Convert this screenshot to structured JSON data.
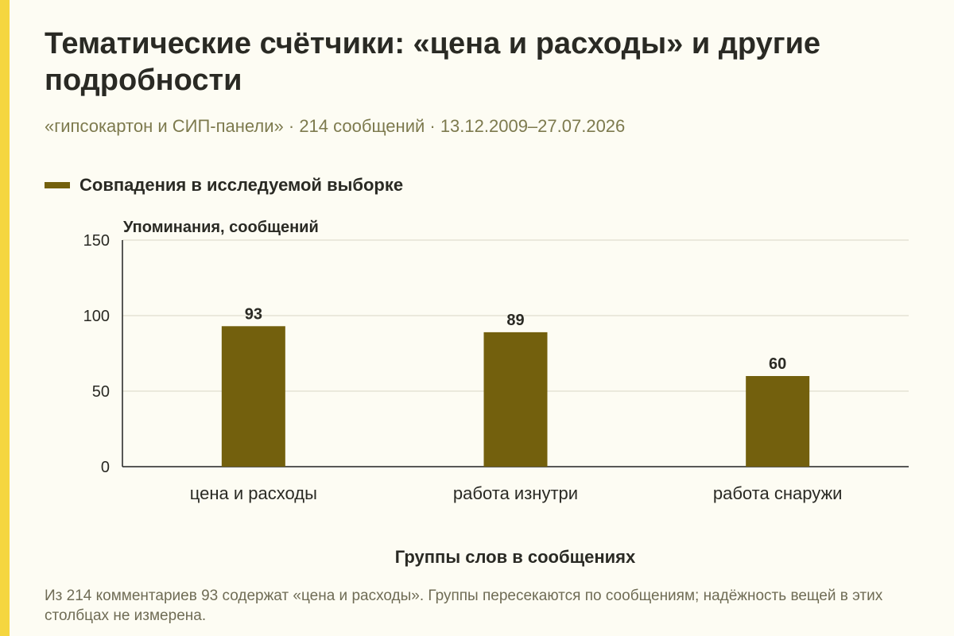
{
  "header": {
    "title": "Тематические счётчики: «цена и расходы» и другие подробности",
    "subtitle": "«гипсокартон и СИП-панели» · 214 сообщений · 13.12.2009–27.07.2026"
  },
  "colors": {
    "accent": "#f5d63f",
    "bar": "#73600d",
    "background": "#fdfcf3",
    "grid": "#d9d6c6"
  },
  "chart_data": {
    "type": "bar",
    "categories": [
      "цена и расходы",
      "работа изнутри",
      "работа снаружи"
    ],
    "series": [
      {
        "name": "Совпадения в исследуемой выборке",
        "values": [
          93,
          89,
          60
        ]
      }
    ],
    "ylabel": "Упоминания, сообщений",
    "xlabel": "Группы слов в сообщениях",
    "ylim": [
      0,
      150
    ],
    "yticks": [
      0,
      50,
      100,
      150
    ],
    "grid": true,
    "legend": "top-left"
  },
  "footnote": "Из 214 комментариев 93 содержат «цена и расходы». Группы пересекаются по сообщениям; надёжность вещей в этих столбцах не измерена."
}
